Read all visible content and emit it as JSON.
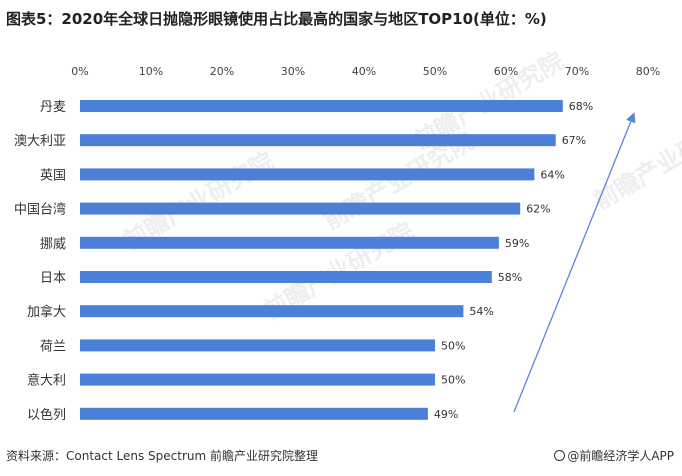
{
  "title": "图表5：2020年全球日抛隐形眼镜使用占比最高的国家与地区TOP10(单位：%)",
  "source": "资料来源：Contact Lens Spectrum 前瞻产业研究院整理",
  "brand": "@前瞻经济学人APP",
  "watermark": "前瞻产业研究院",
  "colors": {
    "bar": "#4b7fd8",
    "arrow": "#5a86d6"
  },
  "chart_data": {
    "type": "bar",
    "orientation": "horizontal",
    "categories": [
      "丹麦",
      "澳大利亚",
      "英国",
      "中国台湾",
      "挪威",
      "日本",
      "加拿大",
      "荷兰",
      "意大利",
      "以色列"
    ],
    "values": [
      68,
      67,
      64,
      62,
      59,
      58,
      54,
      50,
      50,
      49
    ],
    "value_labels": [
      "68%",
      "67%",
      "64%",
      "62%",
      "59%",
      "58%",
      "54%",
      "50%",
      "50%",
      "49%"
    ],
    "xticks": [
      "0%",
      "10%",
      "20%",
      "30%",
      "40%",
      "50%",
      "60%",
      "70%",
      "80%"
    ],
    "xlim": [
      0,
      80
    ],
    "grid": false,
    "xaxis_position": "top"
  }
}
